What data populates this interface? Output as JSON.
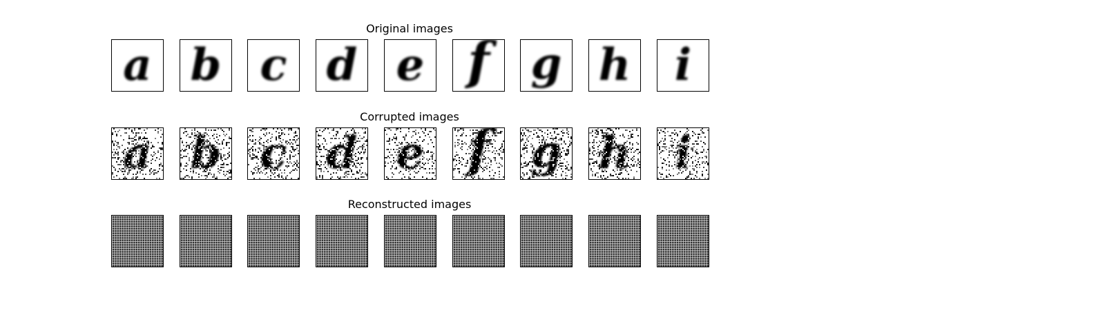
{
  "figure": {
    "rows": [
      {
        "id": "original",
        "title": "Original images",
        "kind": "clean"
      },
      {
        "id": "corrupted",
        "title": "Corrupted images",
        "kind": "noisy"
      },
      {
        "id": "reconstructed",
        "title": "Reconstructed images",
        "kind": "recon"
      }
    ],
    "letters": [
      "a",
      "b",
      "c",
      "d",
      "e",
      "f",
      "g",
      "h",
      "i"
    ],
    "colors": {
      "ink": "#000000",
      "paper": "#ffffff",
      "recon_gray": "#a9a9a9"
    }
  }
}
